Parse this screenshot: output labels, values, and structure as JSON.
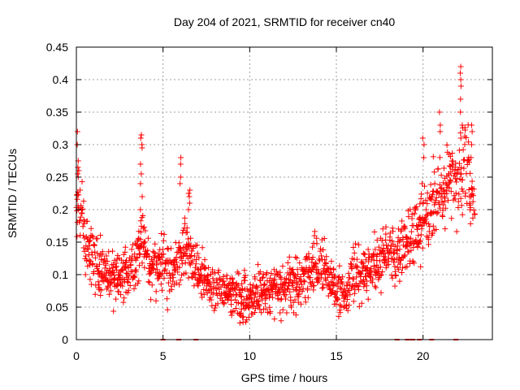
{
  "chart_data": {
    "type": "scatter",
    "title": "Day 204 of 2021, SRMTID for receiver cn40",
    "xlabel": "GPS time / hours",
    "ylabel": "SRMTID / TECUs",
    "xlim": [
      0,
      24
    ],
    "ylim": [
      0,
      0.45
    ],
    "x_ticks": [
      0,
      5,
      10,
      15,
      20
    ],
    "x_tick_labels": [
      "0",
      "5",
      "10",
      "15",
      "20"
    ],
    "y_ticks": [
      0,
      0.05,
      0.1,
      0.15,
      0.2,
      0.25,
      0.3,
      0.35,
      0.4,
      0.45
    ],
    "y_tick_labels": [
      "0",
      "0.05",
      "0.1",
      "0.15",
      "0.2",
      "0.25",
      "0.3",
      "0.35",
      "0.4",
      "0.45"
    ],
    "grid": true,
    "marker": "plus",
    "color": "#ff0000",
    "trend_hours": [
      0,
      0.15,
      0.5,
      1,
      1.5,
      2,
      2.5,
      3,
      3.5,
      3.8,
      4.2,
      5,
      5.5,
      6,
      6.4,
      7,
      7.5,
      8,
      9,
      9.5,
      10,
      11,
      12,
      13,
      13.5,
      14,
      14.5,
      15,
      15.5,
      16,
      16.5,
      17,
      17.5,
      18,
      18.5,
      19,
      19.5,
      20,
      20.5,
      21,
      21.5,
      22,
      22.5,
      23
    ],
    "trend_values": [
      0.2,
      0.21,
      0.14,
      0.12,
      0.1,
      0.095,
      0.1,
      0.1,
      0.12,
      0.16,
      0.11,
      0.12,
      0.1,
      0.13,
      0.14,
      0.1,
      0.09,
      0.08,
      0.07,
      0.06,
      0.065,
      0.075,
      0.08,
      0.09,
      0.11,
      0.12,
      0.09,
      0.075,
      0.07,
      0.09,
      0.1,
      0.11,
      0.12,
      0.14,
      0.13,
      0.15,
      0.16,
      0.19,
      0.2,
      0.22,
      0.24,
      0.25,
      0.28,
      0.2
    ],
    "spread": 0.035,
    "spikes": [
      {
        "x": 0.1,
        "values": [
          0.32,
          0.3,
          0.275,
          0.265,
          0.26,
          0.255,
          0.25
        ]
      },
      {
        "x": 3.75,
        "values": [
          0.315,
          0.31,
          0.3,
          0.295,
          0.27,
          0.255,
          0.24,
          0.22,
          0.2
        ]
      },
      {
        "x": 6.0,
        "values": [
          0.28,
          0.27,
          0.25,
          0.24
        ]
      },
      {
        "x": 6.5,
        "values": [
          0.23,
          0.225,
          0.22,
          0.21,
          0.2
        ]
      },
      {
        "x": 20.0,
        "values": [
          0.31,
          0.3,
          0.28
        ]
      },
      {
        "x": 21.0,
        "values": [
          0.35,
          0.33,
          0.32
        ]
      },
      {
        "x": 22.2,
        "values": [
          0.42,
          0.41,
          0.4,
          0.39,
          0.37,
          0.35,
          0.33,
          0.31
        ]
      },
      {
        "x": 22.8,
        "values": [
          0.33,
          0.32,
          0.3,
          0.28
        ]
      }
    ],
    "zero_points_hours": [
      5.0,
      5.9,
      6.9,
      18.5,
      19.1,
      19.4,
      19.8,
      20.5,
      21.9
    ]
  }
}
